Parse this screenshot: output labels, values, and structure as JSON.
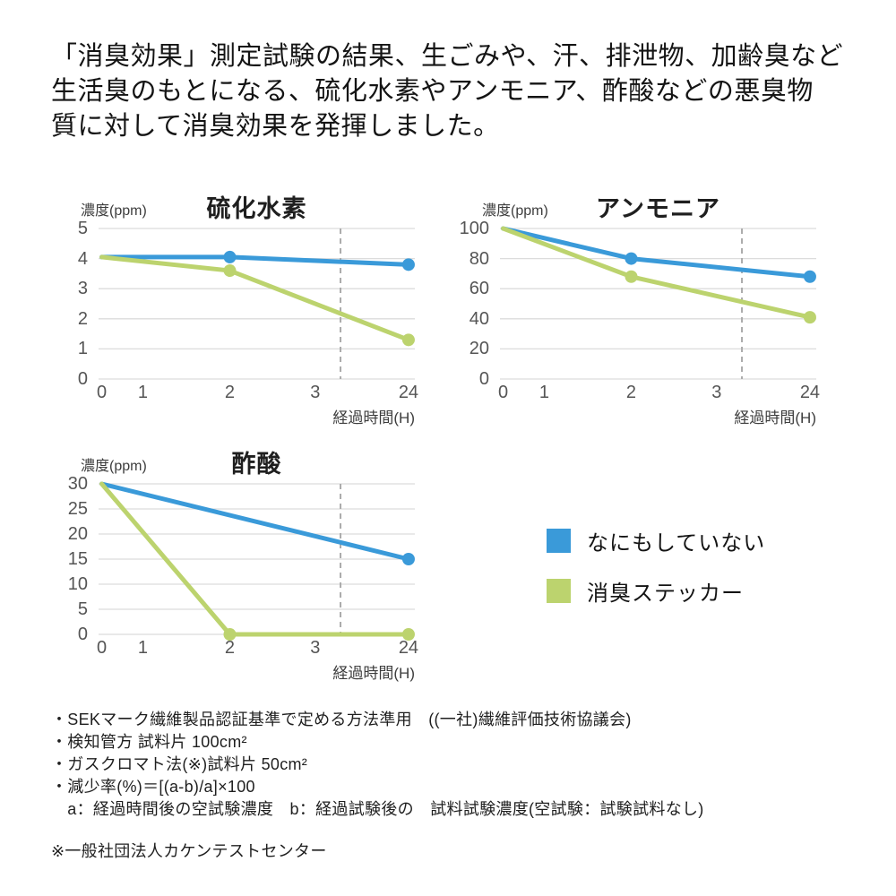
{
  "intro": {
    "lines": [
      "「消臭効果」測定試験の結果、生ごみや、汗、排泄物、加齢臭など",
      "生活臭のもとになる、硫化水素やアンモニア、酢酸などの悪臭物",
      "質に対して消臭効果を発揮しました。"
    ]
  },
  "colors": {
    "untreated_blue": "#3A9AD9",
    "sticker_green": "#BCD36E",
    "grid": "#DCDCDC",
    "dashed_guide": "#ABABAB",
    "tick_text": "#555555"
  },
  "legend": {
    "position": "right-of-third-chart",
    "items": [
      {
        "key": "untreated",
        "label": "なにもしていない",
        "color": "#3A9AD9"
      },
      {
        "key": "sticker",
        "label": "消臭ステッカー",
        "color": "#BCD36E"
      }
    ]
  },
  "chart_data": [
    {
      "type": "line",
      "title": "硫化水素",
      "ylabel": "濃度(ppm)",
      "xlabel": "経過時間(H)",
      "grid": true,
      "x_categories": [
        0,
        1,
        2,
        3,
        24
      ],
      "x_positions": [
        0.01,
        0.14,
        0.415,
        0.685,
        0.98
      ],
      "dashed_x": 0.765,
      "y_ticks": [
        0,
        1,
        2,
        3,
        4,
        5
      ],
      "ylim": [
        0,
        5
      ],
      "series": [
        {
          "key": "untreated",
          "name": "なにもしていない",
          "color": "#3A9AD9",
          "points": [
            {
              "x": 0,
              "y": 4.05,
              "marker": false
            },
            {
              "x": 2,
              "y": 4.05,
              "marker": true
            },
            {
              "x": 24,
              "y": 3.8,
              "marker": true
            }
          ]
        },
        {
          "key": "sticker",
          "name": "消臭ステッカー",
          "color": "#BCD36E",
          "points": [
            {
              "x": 0,
              "y": 4.05,
              "marker": false
            },
            {
              "x": 2,
              "y": 3.6,
              "marker": true
            },
            {
              "x": 24,
              "y": 1.3,
              "marker": true
            }
          ]
        }
      ]
    },
    {
      "type": "line",
      "title": "アンモニア",
      "ylabel": "濃度(ppm)",
      "xlabel": "経過時間(H)",
      "grid": true,
      "x_categories": [
        0,
        1,
        2,
        3,
        24
      ],
      "x_positions": [
        0.01,
        0.14,
        0.415,
        0.685,
        0.98
      ],
      "dashed_x": 0.765,
      "y_ticks": [
        0,
        20,
        40,
        60,
        80,
        100
      ],
      "ylim": [
        0,
        100
      ],
      "series": [
        {
          "key": "untreated",
          "name": "なにもしていない",
          "color": "#3A9AD9",
          "points": [
            {
              "x": 0,
              "y": 100,
              "marker": false
            },
            {
              "x": 2,
              "y": 80,
              "marker": true
            },
            {
              "x": 24,
              "y": 68,
              "marker": true
            }
          ]
        },
        {
          "key": "sticker",
          "name": "消臭ステッカー",
          "color": "#BCD36E",
          "points": [
            {
              "x": 0,
              "y": 100,
              "marker": false
            },
            {
              "x": 2,
              "y": 68,
              "marker": true
            },
            {
              "x": 24,
              "y": 41,
              "marker": true
            }
          ]
        }
      ]
    },
    {
      "type": "line",
      "title": "酢酸",
      "ylabel": "濃度(ppm)",
      "xlabel": "経過時間(H)",
      "grid": true,
      "x_categories": [
        0,
        1,
        2,
        3,
        24
      ],
      "x_positions": [
        0.01,
        0.14,
        0.415,
        0.685,
        0.98
      ],
      "dashed_x": 0.765,
      "y_ticks": [
        0,
        5,
        10,
        15,
        20,
        25,
        30
      ],
      "ylim": [
        0,
        30
      ],
      "series": [
        {
          "key": "untreated",
          "name": "なにもしていない",
          "color": "#3A9AD9",
          "points": [
            {
              "x": 0,
              "y": 30,
              "marker": false
            },
            {
              "x": 24,
              "y": 15,
              "marker": true
            }
          ]
        },
        {
          "key": "sticker",
          "name": "消臭ステッカー",
          "color": "#BCD36E",
          "points": [
            {
              "x": 0,
              "y": 30,
              "marker": false
            },
            {
              "x": 2,
              "y": 0,
              "marker": true
            },
            {
              "x": 24,
              "y": 0,
              "marker": true
            }
          ]
        }
      ]
    }
  ],
  "footnotes": {
    "lines": [
      "・SEKマーク繊維製品認証基準で定める方法準用　((一社)繊維評価技術協議会)",
      "・検知管方 試料片 100cm²",
      "・ガスクロマト法(※)試料片 50cm²",
      "・減少率(%)＝[(a-b)/a]×100",
      "　a：経過時間後の空試験濃度　b：経過試験後の　試料試験濃度(空試験：試験試料なし)"
    ],
    "note": "※一般社団法人カケンテストセンター"
  }
}
